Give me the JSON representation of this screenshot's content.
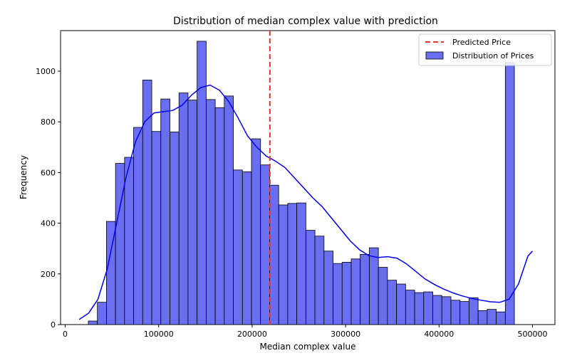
{
  "chart_data": {
    "type": "bar",
    "title": "Distribution of median complex value with prediction",
    "xlabel": "Median complex value",
    "ylabel": "Frequency",
    "xlim": [
      -5000,
      524000
    ],
    "ylim": [
      0,
      1160
    ],
    "x_ticks": [
      0,
      100000,
      200000,
      300000,
      400000,
      500000
    ],
    "y_ticks": [
      0,
      200,
      400,
      600,
      800,
      1000
    ],
    "bin_start": 14999,
    "bin_width": 9700,
    "counts": [
      0,
      14,
      88,
      407,
      636,
      660,
      778,
      965,
      762,
      890,
      760,
      914,
      886,
      1118,
      888,
      856,
      902,
      610,
      603,
      733,
      630,
      550,
      472,
      478,
      480,
      372,
      349,
      290,
      241,
      246,
      259,
      277,
      303,
      226,
      175,
      160,
      136,
      126,
      129,
      115,
      110,
      96,
      91,
      106,
      55,
      60,
      50,
      1034
    ],
    "kde": {
      "x": [
        15000,
        25000,
        35000,
        45000,
        55000,
        65000,
        75000,
        85000,
        95000,
        105000,
        115000,
        125000,
        135000,
        145000,
        155000,
        165000,
        175000,
        185000,
        195000,
        205000,
        215000,
        225000,
        235000,
        245000,
        255000,
        265000,
        275000,
        285000,
        295000,
        305000,
        315000,
        325000,
        335000,
        345000,
        355000,
        365000,
        375000,
        385000,
        395000,
        405000,
        415000,
        425000,
        435000,
        445000,
        455000,
        465000,
        475000,
        485000,
        495000,
        500000
      ],
      "y": [
        20,
        45,
        100,
        220,
        400,
        580,
        720,
        800,
        835,
        840,
        845,
        865,
        905,
        935,
        945,
        925,
        880,
        815,
        745,
        700,
        665,
        645,
        620,
        580,
        540,
        500,
        465,
        420,
        375,
        330,
        295,
        272,
        265,
        268,
        262,
        240,
        210,
        180,
        158,
        140,
        125,
        113,
        103,
        96,
        90,
        88,
        100,
        160,
        270,
        290
      ]
    },
    "predicted_price": 219000,
    "series": [
      {
        "name": "Distribution of Prices",
        "color": "#6a6ff2",
        "edge_color": "#000000",
        "kde_color": "#0000ee"
      },
      {
        "name": "Predicted Price",
        "color": "#e8322a",
        "style": "dashed"
      }
    ],
    "legend_position": "top-right"
  }
}
